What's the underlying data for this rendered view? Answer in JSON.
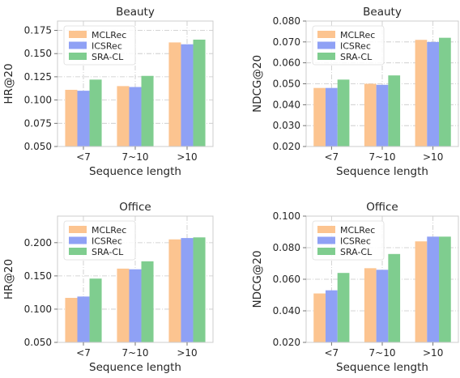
{
  "chart_data": [
    {
      "type": "bar",
      "title": "Beauty",
      "xlabel": "Sequence length",
      "ylabel": "HR@20",
      "categories": [
        "<7",
        "7~10",
        ">10"
      ],
      "ylim": [
        0.05,
        0.185
      ],
      "yticks": [
        "0.050",
        "0.075",
        "0.100",
        "0.125",
        "0.150",
        "0.175"
      ],
      "ytick_values": [
        0.05,
        0.075,
        0.1,
        0.125,
        0.15,
        0.175
      ],
      "grid": true,
      "legend_position": "top-left",
      "series": [
        {
          "name": "MCLRec",
          "color": "#fcc490",
          "values": [
            0.111,
            0.115,
            0.162
          ]
        },
        {
          "name": "ICSRec",
          "color": "#8fa1f5",
          "values": [
            0.11,
            0.114,
            0.16
          ]
        },
        {
          "name": "SRA-CL",
          "color": "#7fcd8f",
          "values": [
            0.122,
            0.126,
            0.165
          ]
        }
      ]
    },
    {
      "type": "bar",
      "title": "Beauty",
      "xlabel": "Sequence length",
      "ylabel": "NDCG@20",
      "categories": [
        "<7",
        "7~10",
        ">10"
      ],
      "ylim": [
        0.02,
        0.08
      ],
      "yticks": [
        "0.020",
        "0.030",
        "0.040",
        "0.050",
        "0.060",
        "0.070",
        "0.080"
      ],
      "ytick_values": [
        0.02,
        0.03,
        0.04,
        0.05,
        0.06,
        0.07,
        0.08
      ],
      "grid": true,
      "legend_position": "top-left",
      "series": [
        {
          "name": "MCLRec",
          "color": "#fcc490",
          "values": [
            0.048,
            0.05,
            0.071
          ]
        },
        {
          "name": "ICSRec",
          "color": "#8fa1f5",
          "values": [
            0.048,
            0.0495,
            0.07
          ]
        },
        {
          "name": "SRA-CL",
          "color": "#7fcd8f",
          "values": [
            0.052,
            0.054,
            0.072
          ]
        }
      ]
    },
    {
      "type": "bar",
      "title": "Office",
      "xlabel": "Sequence length",
      "ylabel": "HR@20",
      "categories": [
        "<7",
        "7~10",
        ">10"
      ],
      "ylim": [
        0.05,
        0.24
      ],
      "yticks": [
        "0.050",
        "0.100",
        "0.150",
        "0.200"
      ],
      "ytick_values": [
        0.05,
        0.1,
        0.15,
        0.2
      ],
      "grid": true,
      "legend_position": "top-left",
      "series": [
        {
          "name": "MCLRec",
          "color": "#fcc490",
          "values": [
            0.117,
            0.161,
            0.205
          ]
        },
        {
          "name": "ICSRec",
          "color": "#8fa1f5",
          "values": [
            0.119,
            0.16,
            0.207
          ]
        },
        {
          "name": "SRA-CL",
          "color": "#7fcd8f",
          "values": [
            0.146,
            0.172,
            0.208
          ]
        }
      ]
    },
    {
      "type": "bar",
      "title": "Office",
      "xlabel": "Sequence length",
      "ylabel": "NDCG@20",
      "categories": [
        "<7",
        "7~10",
        ">10"
      ],
      "ylim": [
        0.02,
        0.1
      ],
      "yticks": [
        "0.020",
        "0.040",
        "0.060",
        "0.080",
        "0.100"
      ],
      "ytick_values": [
        0.02,
        0.04,
        0.06,
        0.08,
        0.1
      ],
      "grid": true,
      "legend_position": "top-left",
      "series": [
        {
          "name": "MCLRec",
          "color": "#fcc490",
          "values": [
            0.051,
            0.067,
            0.084
          ]
        },
        {
          "name": "ICSRec",
          "color": "#8fa1f5",
          "values": [
            0.053,
            0.066,
            0.087
          ]
        },
        {
          "name": "SRA-CL",
          "color": "#7fcd8f",
          "values": [
            0.064,
            0.076,
            0.087
          ]
        }
      ]
    }
  ]
}
